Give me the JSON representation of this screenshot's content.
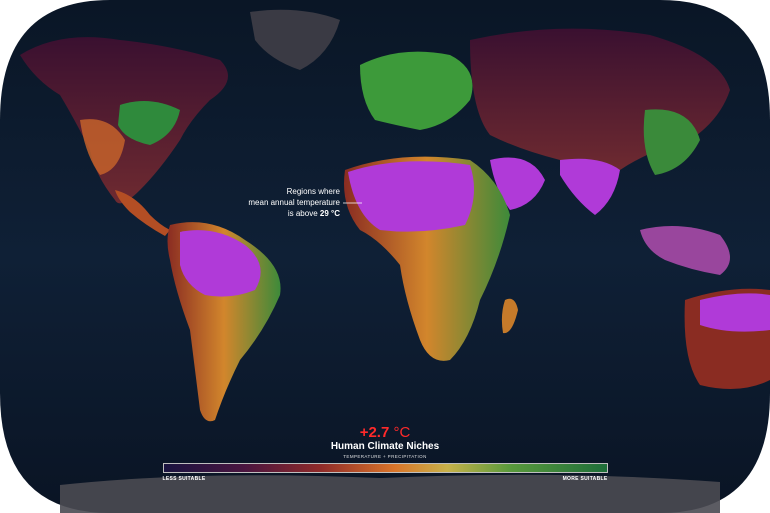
{
  "annotation": {
    "line1": "Regions where",
    "line2": "mean annual temperature",
    "line3_prefix": "is above ",
    "line3_value": "29 °C"
  },
  "legend": {
    "temp_value": "+2.7",
    "temp_unit": " °C",
    "title": "Human Climate Niches",
    "subtitle": "TEMPERATURE + PRECIPITATION",
    "left_label": "LESS SUITABLE",
    "right_label": "MORE SUITABLE"
  },
  "colors": {
    "ocean": "#0d1a2e",
    "hot_region": "#b03ad8",
    "suitable": "#2f8a3c",
    "highlight_temp": "#ff2a2a"
  }
}
